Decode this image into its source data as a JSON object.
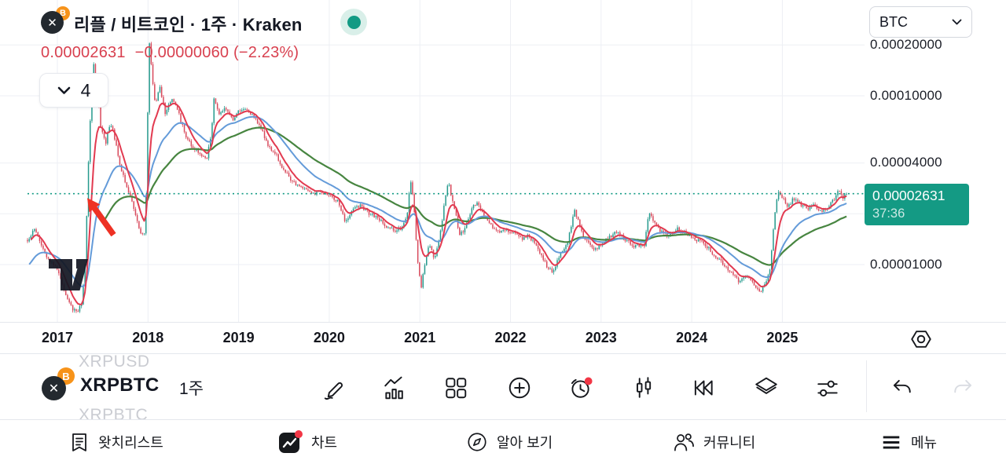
{
  "header": {
    "title": "리플 / 비트코인 · 1주 · Kraken",
    "price": "0.00002631",
    "change": "−0.00000060 (−2.23%)",
    "interval_button": "4",
    "quote_currency": "BTC",
    "base_coin": "✕",
    "quote_coin": "B",
    "market_status": "open"
  },
  "price_scale": {
    "ticks": [
      "0.00020000",
      "0.00010000",
      "0.00004000",
      "0.00001000"
    ],
    "current_price_label": {
      "price": "0.00002631",
      "countdown": "37:36"
    }
  },
  "time_scale": {
    "years": [
      "2017",
      "2018",
      "2019",
      "2020",
      "2021",
      "2022",
      "2023",
      "2024",
      "2025"
    ]
  },
  "symbol_row": {
    "prev_symbol": "XRPUSD",
    "symbol": "XRPBTC",
    "interval": "1주",
    "next_symbol": "XRPBTC"
  },
  "bottom_nav": {
    "items": [
      {
        "label": "왓치리스트"
      },
      {
        "label": "차트",
        "active": true,
        "badge": true
      },
      {
        "label": "알아 보기"
      },
      {
        "label": "커뮤니티"
      },
      {
        "label": "메뉴"
      }
    ]
  },
  "chart_data": {
    "type": "candlestick",
    "symbol": "XRPBTC",
    "exchange": "Kraken",
    "interval_label": "1주",
    "scale": "log",
    "current_price": 2.631e-05,
    "change": -6e-07,
    "change_pct": -2.23,
    "countdown": "37:36",
    "y_ticks": [
      "0.00020000",
      "0.00010000",
      "0.00004000",
      "0.00001000"
    ],
    "grid_prices": [
      0.0002,
      0.0001,
      4e-05,
      2e-05,
      1e-05
    ],
    "x_tick_years": [
      2017,
      2018,
      2019,
      2020,
      2021,
      2022,
      2023,
      2024,
      2025
    ],
    "t_start": 2016.67,
    "t_end": 2025.72,
    "colors": {
      "up": "#269a8d",
      "down": "#d8495b",
      "grid": "#edeff4",
      "accent": "#119a83",
      "label_bg": "#149a84"
    },
    "moving_averages": [
      {
        "name": "slow-ma",
        "span": 58,
        "color": "#478540",
        "width": 2.2,
        "draw_from": 44
      },
      {
        "name": "mid-ma",
        "span": 26,
        "color": "#649bd9",
        "width": 2,
        "draw_from": 1,
        "seed": 9.5e-06
      },
      {
        "name": "fast-ma",
        "span": 8,
        "color": "#e23a50",
        "width": 2,
        "draw_from": 2
      }
    ],
    "annotation_arrow": {
      "tip": [
        2017.33,
        2.48e-05
      ],
      "tail": [
        2017.62,
        1.5e-05
      ],
      "color": "#ee3124"
    },
    "anchors": [
      [
        2016.67,
        1.4e-05
      ],
      [
        2016.75,
        1.62e-05
      ],
      [
        2016.83,
        1.25e-05
      ],
      [
        2016.92,
        1.05e-05
      ],
      [
        2017.0,
        9.5e-06
      ],
      [
        2017.08,
        6.8e-06
      ],
      [
        2017.15,
        5.6e-06
      ],
      [
        2017.22,
        5.2e-06
      ],
      [
        2017.27,
        6e-06
      ],
      [
        2017.31,
        1.1e-05
      ],
      [
        2017.345,
        4.5e-05
      ],
      [
        2017.37,
        9e-05
      ],
      [
        2017.4,
        0.000155
      ],
      [
        2017.44,
        0.000105
      ],
      [
        2017.48,
        6.5e-05
      ],
      [
        2017.53,
        5.2e-05
      ],
      [
        2017.58,
        6.8e-05
      ],
      [
        2017.62,
        6e-05
      ],
      [
        2017.68,
        4.2e-05
      ],
      [
        2017.75,
        3e-05
      ],
      [
        2017.82,
        2.4e-05
      ],
      [
        2017.88,
        1.85e-05
      ],
      [
        2017.93,
        1.45e-05
      ],
      [
        2017.96,
        1.55e-05
      ],
      [
        2017.985,
        3.2e-05
      ],
      [
        2018.01,
        0.000225
      ],
      [
        2018.045,
        0.000135
      ],
      [
        2018.08,
        8.5e-05
      ],
      [
        2018.13,
        0.000115
      ],
      [
        2018.19,
        7.8e-05
      ],
      [
        2018.27,
        9.8e-05
      ],
      [
        2018.33,
        8.2e-05
      ],
      [
        2018.42,
        5.6e-05
      ],
      [
        2018.5,
        4.9e-05
      ],
      [
        2018.58,
        4.4e-05
      ],
      [
        2018.65,
        4.3e-05
      ],
      [
        2018.7,
        6e-05
      ],
      [
        2018.73,
        9.8e-05
      ],
      [
        2018.78,
        7.6e-05
      ],
      [
        2018.85,
        8.6e-05
      ],
      [
        2018.93,
        7.2e-05
      ],
      [
        2019.0,
        8e-05
      ],
      [
        2019.08,
        8.4e-05
      ],
      [
        2019.15,
        7.6e-05
      ],
      [
        2019.25,
        6.4e-05
      ],
      [
        2019.33,
        5e-05
      ],
      [
        2019.42,
        4.4e-05
      ],
      [
        2019.5,
        3.6e-05
      ],
      [
        2019.6,
        3.1e-05
      ],
      [
        2019.7,
        2.85e-05
      ],
      [
        2019.8,
        2.6e-05
      ],
      [
        2019.9,
        2.75e-05
      ],
      [
        2020.0,
        2.55e-05
      ],
      [
        2020.1,
        2.35e-05
      ],
      [
        2020.18,
        1.75e-05
      ],
      [
        2020.24,
        2.05e-05
      ],
      [
        2020.33,
        2.25e-05
      ],
      [
        2020.42,
        2.05e-05
      ],
      [
        2020.52,
        1.9e-05
      ],
      [
        2020.62,
        1.7e-05
      ],
      [
        2020.72,
        1.6e-05
      ],
      [
        2020.8,
        1.65e-05
      ],
      [
        2020.86,
        1.95e-05
      ],
      [
        2020.895,
        3.3e-05
      ],
      [
        2020.93,
        2.4e-05
      ],
      [
        2020.97,
        1.15e-05
      ],
      [
        2021.01,
        7.2e-06
      ],
      [
        2021.05,
        9.5e-06
      ],
      [
        2021.1,
        1.35e-05
      ],
      [
        2021.16,
        1.1e-05
      ],
      [
        2021.22,
        1.45e-05
      ],
      [
        2021.28,
        2.55e-05
      ],
      [
        2021.315,
        3.05e-05
      ],
      [
        2021.37,
        2.3e-05
      ],
      [
        2021.44,
        1.5e-05
      ],
      [
        2021.5,
        1.62e-05
      ],
      [
        2021.58,
        2.2e-05
      ],
      [
        2021.63,
        2.35e-05
      ],
      [
        2021.7,
        1.95e-05
      ],
      [
        2021.78,
        1.75e-05
      ],
      [
        2021.86,
        1.55e-05
      ],
      [
        2021.95,
        1.6e-05
      ],
      [
        2022.03,
        1.52e-05
      ],
      [
        2022.12,
        1.42e-05
      ],
      [
        2022.2,
        1.5e-05
      ],
      [
        2022.3,
        1.25e-05
      ],
      [
        2022.4,
        9.8e-06
      ],
      [
        2022.46,
        9e-06
      ],
      [
        2022.54,
        1.12e-05
      ],
      [
        2022.63,
        1.35e-05
      ],
      [
        2022.71,
        2.1e-05
      ],
      [
        2022.76,
        1.7e-05
      ],
      [
        2022.83,
        1.38e-05
      ],
      [
        2022.92,
        1.22e-05
      ],
      [
        2023.0,
        1.32e-05
      ],
      [
        2023.1,
        1.48e-05
      ],
      [
        2023.18,
        1.58e-05
      ],
      [
        2023.28,
        1.38e-05
      ],
      [
        2023.38,
        1.28e-05
      ],
      [
        2023.48,
        1.32e-05
      ],
      [
        2023.53,
        2.05e-05
      ],
      [
        2023.58,
        1.78e-05
      ],
      [
        2023.66,
        1.56e-05
      ],
      [
        2023.75,
        1.48e-05
      ],
      [
        2023.84,
        1.62e-05
      ],
      [
        2023.93,
        1.55e-05
      ],
      [
        2024.02,
        1.42e-05
      ],
      [
        2024.12,
        1.38e-05
      ],
      [
        2024.22,
        1.18e-05
      ],
      [
        2024.32,
        1.05e-05
      ],
      [
        2024.42,
        9.2e-06
      ],
      [
        2024.52,
        8e-06
      ],
      [
        2024.6,
        8.6e-06
      ],
      [
        2024.68,
        7.8e-06
      ],
      [
        2024.76,
        7e-06
      ],
      [
        2024.82,
        7.6e-06
      ],
      [
        2024.87,
        1e-05
      ],
      [
        2024.91,
        1.9e-05
      ],
      [
        2024.95,
        2.7e-05
      ],
      [
        2025.0,
        2.5e-05
      ],
      [
        2025.06,
        2.2e-05
      ],
      [
        2025.12,
        2.45e-05
      ],
      [
        2025.19,
        2.3e-05
      ],
      [
        2025.27,
        2.12e-05
      ],
      [
        2025.35,
        2.25e-05
      ],
      [
        2025.43,
        2.05e-05
      ],
      [
        2025.5,
        2.18e-05
      ],
      [
        2025.57,
        2.42e-05
      ],
      [
        2025.62,
        2.75e-05
      ],
      [
        2025.67,
        2.5e-05
      ],
      [
        2025.72,
        2.631e-05
      ]
    ],
    "watermark": "TradingView"
  }
}
